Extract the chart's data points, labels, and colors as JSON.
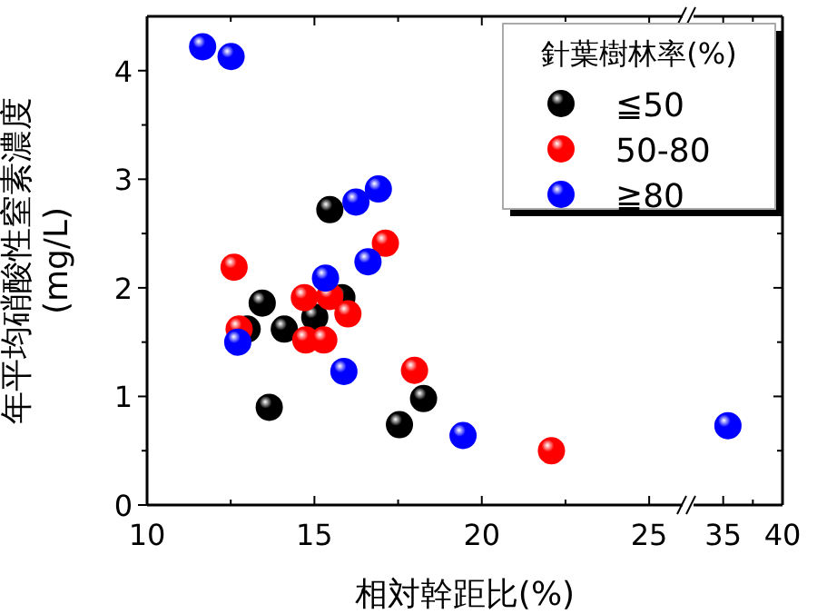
{
  "chart_data": [
    {
      "type": "scatter",
      "xlabel": "相対幹距比(%)",
      "ylabel": "年平均硝酸性窒素濃度\n(mg/L)",
      "legend_title": "針葉樹林率(%)",
      "legend": "top right",
      "marker": "circle",
      "xlim": [
        10,
        26
      ],
      "xticks": [
        10,
        {
          "value": 12.5,
          "label": null
        },
        15,
        {
          "value": 17.5,
          "label": null
        },
        20,
        {
          "value": 22.5,
          "label": null
        },
        25
      ],
      "ylim": [
        0,
        4.5
      ],
      "yticks": [
        0,
        {
          "value": 0.5,
          "label": null
        },
        1,
        {
          "value": 1.5,
          "label": null
        },
        2,
        {
          "value": 2.5,
          "label": null
        },
        3,
        {
          "value": 3.5,
          "label": null
        },
        4
      ],
      "series": [
        {
          "name": "≦50",
          "color": "#000000",
          "x": [
            13.44,
            12.99,
            14.1,
            13.65,
            15.46,
            15.01,
            15.82,
            17.54,
            18.26
          ],
          "values": [
            1.86,
            1.62,
            1.62,
            0.9,
            2.72,
            1.73,
            1.91,
            0.74,
            0.98
          ]
        },
        {
          "name": "50-80",
          "color": "#ff0000",
          "x": [
            12.6,
            12.75,
            14.7,
            14.74,
            15.28,
            15.46,
            16.0,
            17.12,
            17.99,
            22.08
          ],
          "values": [
            2.19,
            1.62,
            1.91,
            1.52,
            1.52,
            1.92,
            1.76,
            2.41,
            1.24,
            0.5
          ]
        },
        {
          "name": "≧80",
          "color": "#0000ff",
          "x": [
            11.66,
            12.51,
            12.71,
            15.33,
            16.24,
            16.91,
            16.6,
            15.88,
            19.44
          ],
          "values": [
            4.22,
            4.13,
            1.5,
            2.09,
            2.79,
            2.91,
            2.24,
            1.23,
            0.64
          ]
        }
      ]
    },
    {
      "type": "scatter",
      "marker": "circle",
      "tick_labels": "x",
      "xlim": [
        32.5,
        40
      ],
      "xticks": [
        35,
        {
          "value": 37.5,
          "label": null
        },
        40
      ],
      "ylim": [
        0,
        4.5
      ],
      "series": [
        {
          "color": "#0000ff",
          "x": [
            35.4
          ],
          "values": [
            0.73
          ]
        }
      ]
    }
  ]
}
